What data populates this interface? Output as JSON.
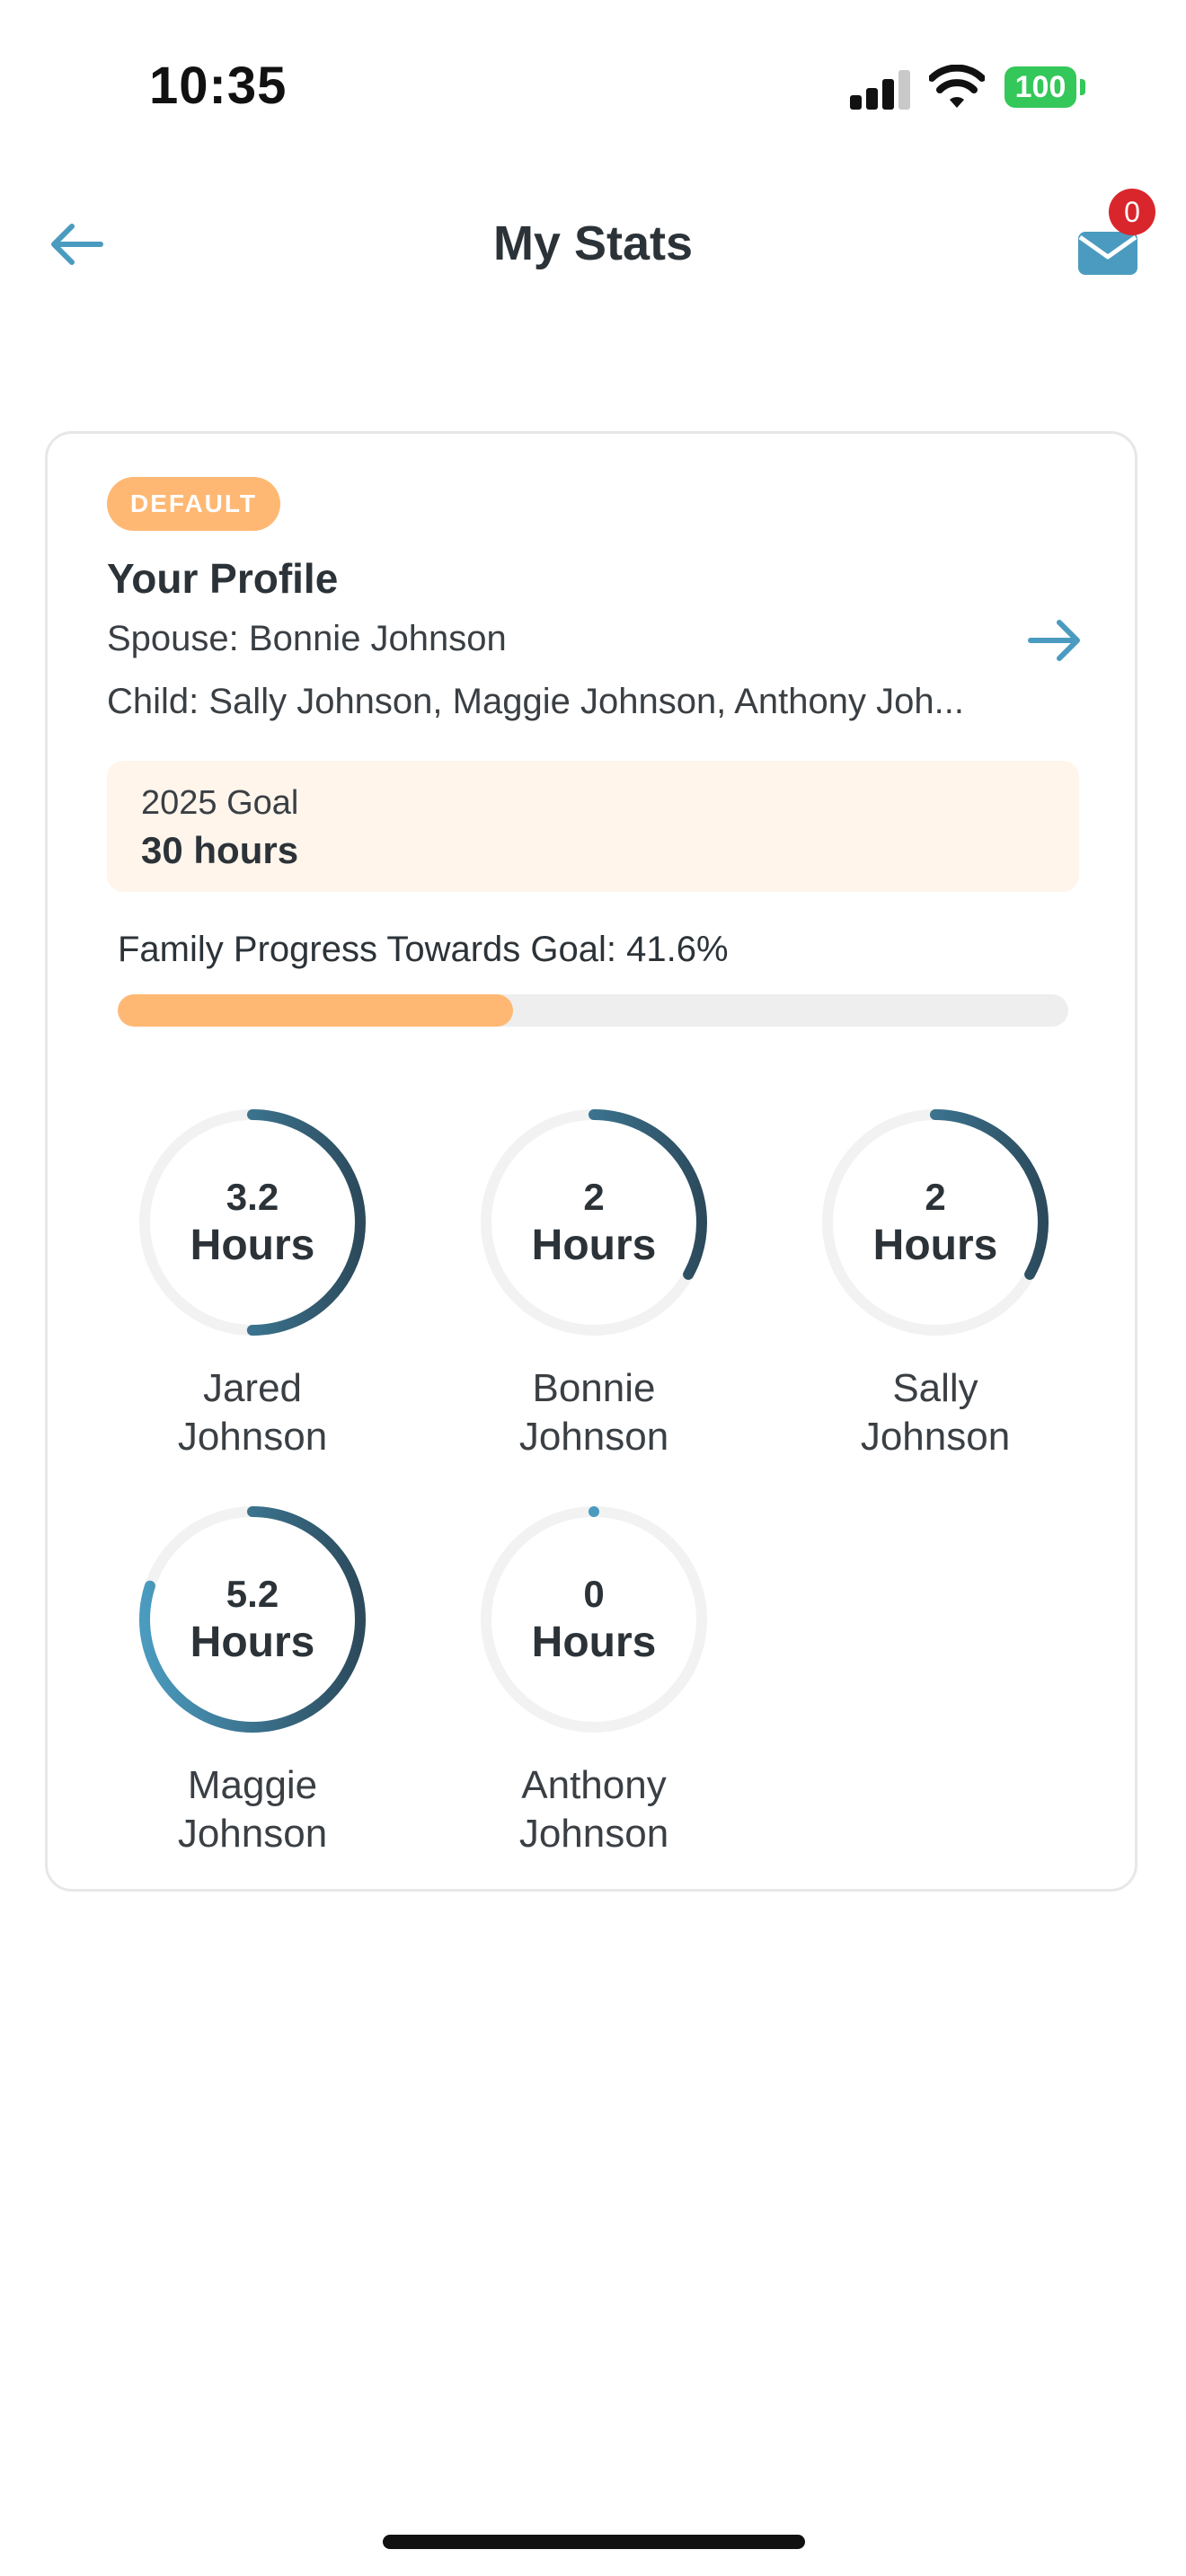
{
  "status_bar": {
    "time": "10:35",
    "battery": "100"
  },
  "header": {
    "title": "My Stats",
    "mail_badge_count": "0"
  },
  "profile": {
    "badge": "DEFAULT",
    "name": "Your Profile",
    "spouse": "Spouse: Bonnie Johnson",
    "children": "Child: Sally Johnson, Maggie Johnson, Anthony Joh..."
  },
  "goal": {
    "label": "2025 Goal",
    "value": "30 hours"
  },
  "progress": {
    "label": "Family Progress Towards Goal: 41.6%",
    "percent": 41.6
  },
  "members": [
    {
      "hours": "3.2",
      "unit": "Hours",
      "first": "Jared",
      "last": "Johnson",
      "ring_fraction": 0.5
    },
    {
      "hours": "2",
      "unit": "Hours",
      "first": "Bonnie",
      "last": "Johnson",
      "ring_fraction": 0.33
    },
    {
      "hours": "2",
      "unit": "Hours",
      "first": "Sally",
      "last": "Johnson",
      "ring_fraction": 0.33
    },
    {
      "hours": "5.2",
      "unit": "Hours",
      "first": "Maggie",
      "last": "Johnson",
      "ring_fraction": 0.8
    },
    {
      "hours": "0",
      "unit": "Hours",
      "first": "Anthony",
      "last": "Johnson",
      "ring_fraction": 0.0
    }
  ],
  "colors": {
    "accent": "#4a9bbf",
    "accent_dark": "#2c4a5c",
    "orange": "#ffb873",
    "track": "#f2f2f2"
  }
}
